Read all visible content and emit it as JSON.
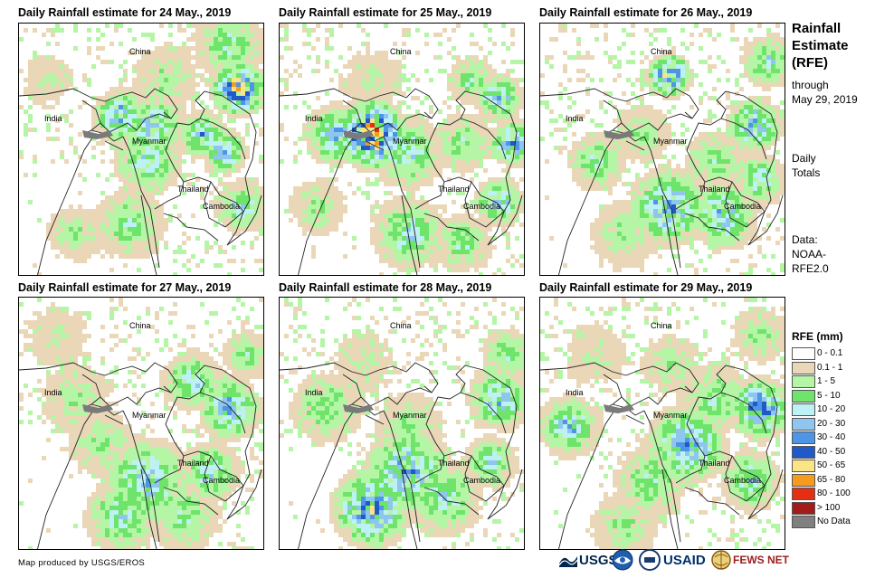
{
  "panels": [
    {
      "title": "Daily Rainfall estimate for 24 May., 2019"
    },
    {
      "title": "Daily Rainfall estimate for 25 May., 2019"
    },
    {
      "title": "Daily Rainfall estimate for 26 May., 2019"
    },
    {
      "title": "Daily Rainfall estimate for 27 May., 2019"
    },
    {
      "title": "Daily Rainfall estimate for 28 May., 2019"
    },
    {
      "title": "Daily Rainfall estimate for 29 May., 2019"
    }
  ],
  "country_labels": {
    "china": "China",
    "india": "India",
    "myanmar": "Myanmar",
    "thailand": "Thailand",
    "cambodia": "Cambodia"
  },
  "side": {
    "title_line1": "Rainfall",
    "title_line2": "Estimate",
    "title_line3": "(RFE)",
    "through": "through",
    "date": "May 29, 2019",
    "daily": "Daily",
    "totals": "Totals",
    "data_label": "Data:",
    "source1": "NOAA-",
    "source2": "RFE2.0"
  },
  "legend": {
    "title": "RFE (mm)",
    "items": [
      {
        "label": "0 - 0.1",
        "color": "#ffffff"
      },
      {
        "label": "0.1 - 1",
        "color": "#ead7b7"
      },
      {
        "label": "1 - 5",
        "color": "#b5f5a6"
      },
      {
        "label": "5 - 10",
        "color": "#6ee46b"
      },
      {
        "label": "10 - 20",
        "color": "#bdf1f5"
      },
      {
        "label": "20 - 30",
        "color": "#8fc6ef"
      },
      {
        "label": "30 - 40",
        "color": "#4f95e6"
      },
      {
        "label": "40 - 50",
        "color": "#2259c9"
      },
      {
        "label": "50 - 65",
        "color": "#fbe486"
      },
      {
        "label": "65 - 80",
        "color": "#f79b1e"
      },
      {
        "label": "80 - 100",
        "color": "#e52f14"
      },
      {
        "label": "> 100",
        "color": "#a31b1b"
      },
      {
        "label": "No Data",
        "color": "#808080"
      }
    ]
  },
  "footer": {
    "credit": "Map produced by USGS/EROS"
  },
  "logos": {
    "usgs": "USGS",
    "usaid": "USAID",
    "fewsnet": "FEWS NET"
  }
}
